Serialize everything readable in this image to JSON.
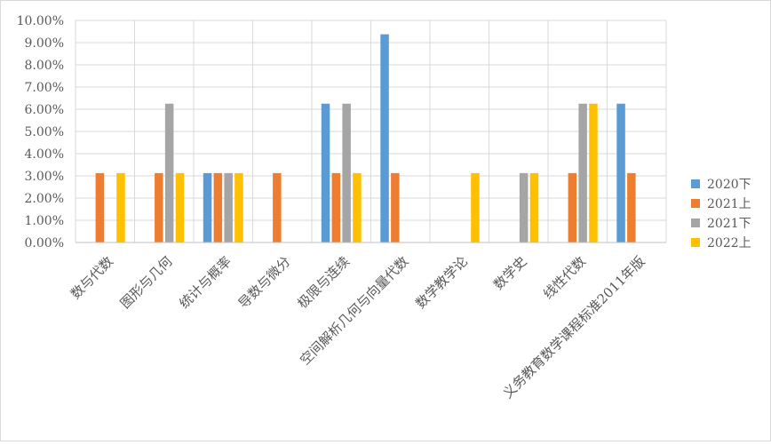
{
  "chart_data": {
    "type": "bar",
    "title": "",
    "xlabel": "",
    "ylabel": "",
    "ylim": [
      0,
      0.1
    ],
    "yticks": [
      "0.00%",
      "1.00%",
      "2.00%",
      "3.00%",
      "4.00%",
      "5.00%",
      "6.00%",
      "7.00%",
      "8.00%",
      "9.00%",
      "10.00%"
    ],
    "grid": true,
    "legend_position": "right",
    "categories": [
      "数与代数",
      "图形与几何",
      "统计与概率",
      "导数与微分",
      "极限与连续",
      "空间解析几何与向量代数",
      "数学教学论",
      "数学史",
      "线性代数",
      "义务教育数学课程标准2011年版"
    ],
    "series": [
      {
        "name": "2020下",
        "color": "#5B9BD5",
        "values": [
          0,
          0,
          0.03125,
          0,
          0.0625,
          0.09375,
          0,
          0,
          0,
          0.0625
        ]
      },
      {
        "name": "2021上",
        "color": "#ED7D31",
        "values": [
          0.03125,
          0.03125,
          0.03125,
          0.03125,
          0.03125,
          0.03125,
          0,
          0,
          0.03125,
          0.03125
        ]
      },
      {
        "name": "2021下",
        "color": "#A5A5A5",
        "values": [
          0,
          0.0625,
          0.03125,
          0,
          0.0625,
          0,
          0,
          0.03125,
          0.0625,
          0
        ]
      },
      {
        "name": "2022上",
        "color": "#FFC000",
        "values": [
          0.03125,
          0.03125,
          0.03125,
          0,
          0.03125,
          0,
          0.03125,
          0.03125,
          0.0625,
          0
        ]
      }
    ]
  }
}
